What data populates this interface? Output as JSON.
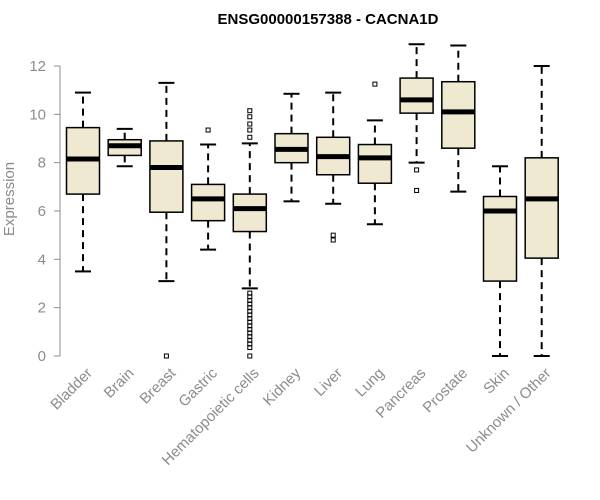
{
  "chart_data": {
    "type": "boxplot",
    "title": "ENSG00000157388 - CACNA1D",
    "xlabel": "",
    "ylabel": "Expression",
    "ylim": [
      0,
      12
    ],
    "yticks": [
      0,
      2,
      4,
      6,
      8,
      10,
      12
    ],
    "colors": {
      "box_fill": "#efe9d1",
      "stroke": "#000000",
      "axis": "#8c8c8c"
    },
    "categories": [
      "Bladder",
      "Brain",
      "Breast",
      "Gastric",
      "Hematopoietic cells",
      "Kidney",
      "Liver",
      "Lung",
      "Pancreas",
      "Prostate",
      "Skin",
      "Unknown / Other"
    ],
    "boxes": [
      {
        "name": "Bladder",
        "min": 3.5,
        "q1": 6.7,
        "median": 8.15,
        "q3": 9.45,
        "max": 10.9,
        "outliers": []
      },
      {
        "name": "Brain",
        "min": 7.85,
        "q1": 8.3,
        "median": 8.7,
        "q3": 8.95,
        "max": 9.4,
        "outliers": []
      },
      {
        "name": "Breast",
        "min": 3.1,
        "q1": 5.95,
        "median": 7.8,
        "q3": 8.9,
        "max": 11.3,
        "outliers": [
          0.0
        ]
      },
      {
        "name": "Gastric",
        "min": 4.4,
        "q1": 5.6,
        "median": 6.5,
        "q3": 7.1,
        "max": 8.75,
        "outliers": [
          9.35
        ]
      },
      {
        "name": "Hematopoietic cells",
        "min": 2.8,
        "q1": 5.15,
        "median": 6.1,
        "q3": 6.7,
        "max": 8.8,
        "outliers": [
          10.15,
          9.9,
          9.6,
          9.35,
          9.05,
          2.6,
          2.45,
          2.3,
          2.15,
          2.0,
          1.85,
          1.7,
          1.55,
          1.4,
          1.25,
          1.1,
          0.95,
          0.8,
          0.65,
          0.5,
          0.35,
          0.0
        ]
      },
      {
        "name": "Kidney",
        "min": 6.4,
        "q1": 8.0,
        "median": 8.55,
        "q3": 9.2,
        "max": 10.85,
        "outliers": []
      },
      {
        "name": "Liver",
        "min": 6.3,
        "q1": 7.5,
        "median": 8.25,
        "q3": 9.05,
        "max": 10.9,
        "outliers": [
          5.0,
          4.8
        ]
      },
      {
        "name": "Lung",
        "min": 5.45,
        "q1": 7.15,
        "median": 8.2,
        "q3": 8.75,
        "max": 9.75,
        "outliers": [
          11.25
        ]
      },
      {
        "name": "Pancreas",
        "min": 8.0,
        "q1": 10.05,
        "median": 10.6,
        "q3": 11.5,
        "max": 12.9,
        "outliers": [
          7.7,
          6.85
        ]
      },
      {
        "name": "Prostate",
        "min": 6.8,
        "q1": 8.6,
        "median": 10.1,
        "q3": 11.35,
        "max": 12.85,
        "outliers": []
      },
      {
        "name": "Skin",
        "min": 0.0,
        "q1": 3.1,
        "median": 6.0,
        "q3": 6.6,
        "max": 7.85,
        "outliers": []
      },
      {
        "name": "Unknown / Other",
        "min": 0.0,
        "q1": 4.05,
        "median": 6.5,
        "q3": 8.2,
        "max": 12.0,
        "outliers": []
      }
    ]
  }
}
